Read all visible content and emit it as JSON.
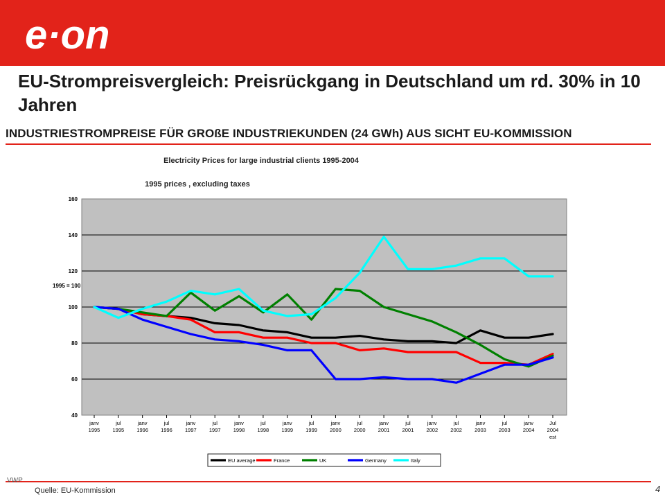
{
  "header": {
    "brand_color": "#e2231a",
    "logo_text": "e·on",
    "title": "EU-Strompreisvergleich: Preisrückgang in Deutschland um rd. 30% in 10 Jahren",
    "subtitle": "INDUSTRIESTROMPREISE FÜR GROßE INDUSTRIEKUNDEN (24 GWh) AUS SICHT EU-KOMMISSION"
  },
  "footer": {
    "code": "VWP",
    "source": "Quelle: EU-Kommission",
    "page_number": "4"
  },
  "chart_data": {
    "type": "line",
    "title": "Electricity Prices for large industrial clients 1995-2004",
    "subtitle": "1995 prices , excluding taxes",
    "annotation": "1995 = 100",
    "ylim": [
      40,
      160
    ],
    "yticks": [
      40,
      60,
      80,
      100,
      120,
      140,
      160
    ],
    "grid": true,
    "legend_position": "bottom",
    "categories": [
      [
        "janv",
        "1995"
      ],
      [
        "jul",
        "1995"
      ],
      [
        "janv",
        "1996"
      ],
      [
        "jul",
        "1996"
      ],
      [
        "janv",
        "1997"
      ],
      [
        "jul",
        "1997"
      ],
      [
        "janv",
        "1998"
      ],
      [
        "jul",
        "1998"
      ],
      [
        "janv",
        "1999"
      ],
      [
        "jul",
        "1999"
      ],
      [
        "janv",
        "2000"
      ],
      [
        "jul",
        "2000"
      ],
      [
        "janv",
        "2001"
      ],
      [
        "jul",
        "2001"
      ],
      [
        "janv",
        "2002"
      ],
      [
        "jul",
        "2002"
      ],
      [
        "janv",
        "2003"
      ],
      [
        "jul",
        "2003"
      ],
      [
        "janv",
        "2004"
      ],
      [
        "Jul",
        "2004",
        "est"
      ]
    ],
    "series": [
      {
        "name": "EU average",
        "color": "#000000",
        "values": [
          100,
          99,
          96,
          95,
          94,
          91,
          90,
          87,
          86,
          83,
          83,
          84,
          82,
          81,
          81,
          80,
          87,
          83,
          83,
          85
        ]
      },
      {
        "name": "France",
        "color": "#ff0000",
        "values": [
          100,
          99,
          96,
          95,
          93,
          86,
          86,
          83,
          83,
          80,
          80,
          76,
          77,
          75,
          75,
          75,
          69,
          69,
          68,
          74
        ]
      },
      {
        "name": "UK",
        "color": "#008000",
        "values": [
          100,
          99,
          97,
          95,
          108,
          98,
          106,
          97,
          107,
          93,
          110,
          109,
          100,
          96,
          92,
          86,
          79,
          71,
          67,
          73
        ]
      },
      {
        "name": "Germany",
        "color": "#0000ff",
        "values": [
          100,
          99,
          93,
          89,
          85,
          82,
          81,
          79,
          76,
          76,
          60,
          60,
          61,
          60,
          60,
          58,
          63,
          68,
          68,
          72
        ]
      },
      {
        "name": "Italy",
        "color": "#00ffff",
        "values": [
          100,
          94,
          99,
          103,
          109,
          107,
          110,
          98,
          95,
          96,
          105,
          119,
          139,
          121,
          121,
          123,
          127,
          127,
          117,
          117
        ]
      }
    ]
  }
}
